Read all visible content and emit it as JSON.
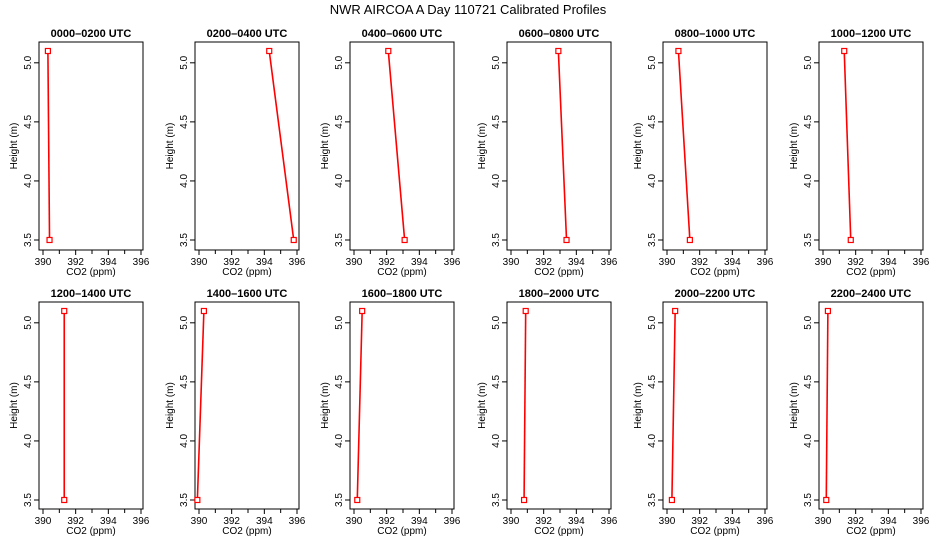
{
  "chart_data": {
    "title": "NWR AIRCOA A  Day 110721  Calibrated Profiles",
    "type": "line",
    "xlabel": "CO2 (ppm)",
    "ylabel": "Height (m)",
    "xlim": [
      390,
      396
    ],
    "ylim": [
      3.5,
      5.1
    ],
    "x_ticks": [
      390,
      392,
      394,
      396
    ],
    "y_ticks": [
      3.5,
      4.0,
      4.5,
      5.0
    ],
    "line_color": "#ff0000",
    "marker": "open-square",
    "panels": [
      {
        "title": "0000–0200 UTC",
        "points": [
          {
            "x": 390.3,
            "y": 5.1
          },
          {
            "x": 390.4,
            "y": 3.5
          }
        ]
      },
      {
        "title": "0200–0400 UTC",
        "points": [
          {
            "x": 394.3,
            "y": 5.1
          },
          {
            "x": 395.8,
            "y": 3.5
          }
        ]
      },
      {
        "title": "0400–0600 UTC",
        "points": [
          {
            "x": 392.1,
            "y": 5.1
          },
          {
            "x": 393.1,
            "y": 3.5
          }
        ]
      },
      {
        "title": "0600–0800 UTC",
        "points": [
          {
            "x": 392.9,
            "y": 5.1
          },
          {
            "x": 393.4,
            "y": 3.5
          }
        ]
      },
      {
        "title": "0800–1000 UTC",
        "points": [
          {
            "x": 390.7,
            "y": 5.1
          },
          {
            "x": 391.4,
            "y": 3.5
          }
        ]
      },
      {
        "title": "1000–1200 UTC",
        "points": [
          {
            "x": 391.3,
            "y": 5.1
          },
          {
            "x": 391.7,
            "y": 3.5
          }
        ]
      },
      {
        "title": "1200–1400 UTC",
        "points": [
          {
            "x": 391.3,
            "y": 5.1
          },
          {
            "x": 391.3,
            "y": 3.5
          }
        ]
      },
      {
        "title": "1400–1600 UTC",
        "points": [
          {
            "x": 390.3,
            "y": 5.1
          },
          {
            "x": 389.9,
            "y": 3.5
          }
        ]
      },
      {
        "title": "1600–1800 UTC",
        "points": [
          {
            "x": 390.5,
            "y": 5.1
          },
          {
            "x": 390.2,
            "y": 3.5
          }
        ]
      },
      {
        "title": "1800–2000 UTC",
        "points": [
          {
            "x": 390.9,
            "y": 5.1
          },
          {
            "x": 390.8,
            "y": 3.5
          }
        ]
      },
      {
        "title": "2000–2200 UTC",
        "points": [
          {
            "x": 390.5,
            "y": 5.1
          },
          {
            "x": 390.3,
            "y": 3.5
          }
        ]
      },
      {
        "title": "2200–2400 UTC",
        "points": [
          {
            "x": 390.3,
            "y": 5.1
          },
          {
            "x": 390.2,
            "y": 3.5
          }
        ]
      }
    ]
  }
}
